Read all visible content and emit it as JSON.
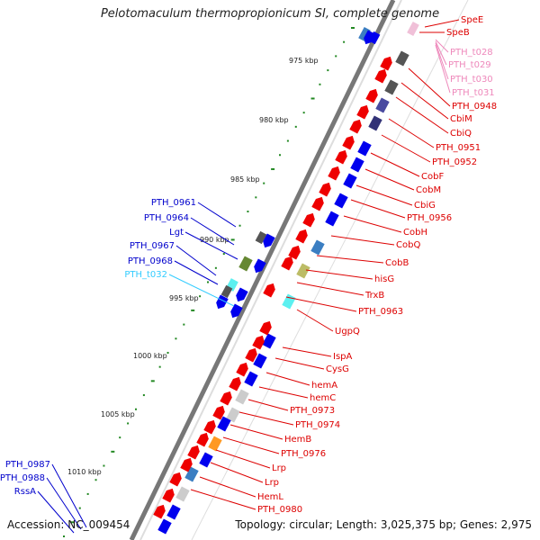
{
  "title": "Pelotomaculum thermopropionicum SI, complete genome",
  "footer": {
    "accession": "Accession: NC_009454",
    "topology": "Topology: circular; Length: 3,025,375 bp; Genes: 2,975"
  },
  "ruler": [
    "975 kbp",
    "980 kbp",
    "985 kbp",
    "990 kbp",
    "995 kbp",
    "1000 kbp",
    "1005 kbp",
    "1010 kbp"
  ],
  "colors": {
    "rna_label": "#ee88bb",
    "gene_label_right": "#dd0000",
    "gene_label_left": "#0000cc",
    "trna_label_left": "#33ccff",
    "forward_gene": "#ee0000",
    "reverse_gene": "#0000ee",
    "tick_green": "#228822"
  },
  "labels_right": [
    {
      "text": "SpeE",
      "color": "#dd0000"
    },
    {
      "text": "SpeB",
      "color": "#dd0000"
    },
    {
      "text": "PTH_t028",
      "color": "#ee88bb"
    },
    {
      "text": "PTH_t029",
      "color": "#ee88bb"
    },
    {
      "text": "PTH_t030",
      "color": "#ee88bb"
    },
    {
      "text": "PTH_t031",
      "color": "#ee88bb"
    },
    {
      "text": "PTH_0948",
      "color": "#dd0000"
    },
    {
      "text": "CbiM",
      "color": "#dd0000"
    },
    {
      "text": "CbiQ",
      "color": "#dd0000"
    },
    {
      "text": "PTH_0951",
      "color": "#dd0000"
    },
    {
      "text": "PTH_0952",
      "color": "#dd0000"
    },
    {
      "text": "CobF",
      "color": "#dd0000"
    },
    {
      "text": "CobM",
      "color": "#dd0000"
    },
    {
      "text": "CbiG",
      "color": "#dd0000"
    },
    {
      "text": "PTH_0956",
      "color": "#dd0000"
    },
    {
      "text": "CobH",
      "color": "#dd0000"
    },
    {
      "text": "CobQ",
      "color": "#dd0000"
    },
    {
      "text": "CobB",
      "color": "#dd0000"
    },
    {
      "text": "hisG",
      "color": "#dd0000"
    },
    {
      "text": "TrxB",
      "color": "#dd0000"
    },
    {
      "text": "PTH_0963",
      "color": "#dd0000"
    },
    {
      "text": "UgpQ",
      "color": "#dd0000"
    },
    {
      "text": "IspA",
      "color": "#dd0000"
    },
    {
      "text": "CysG",
      "color": "#dd0000"
    },
    {
      "text": "hemA",
      "color": "#dd0000"
    },
    {
      "text": "hemC",
      "color": "#dd0000"
    },
    {
      "text": "PTH_0973",
      "color": "#dd0000"
    },
    {
      "text": "PTH_0974",
      "color": "#dd0000"
    },
    {
      "text": "HemB",
      "color": "#dd0000"
    },
    {
      "text": "PTH_0976",
      "color": "#dd0000"
    },
    {
      "text": "Lrp",
      "color": "#dd0000"
    },
    {
      "text": "Lrp",
      "color": "#dd0000"
    },
    {
      "text": "HemL",
      "color": "#dd0000"
    },
    {
      "text": "PTH_0980",
      "color": "#dd0000"
    }
  ],
  "labels_left": [
    {
      "text": "PTH_0961",
      "color": "#0000cc"
    },
    {
      "text": "PTH_0964",
      "color": "#0000cc"
    },
    {
      "text": "Lgt",
      "color": "#0000cc"
    },
    {
      "text": "PTH_0967",
      "color": "#0000cc"
    },
    {
      "text": "PTH_0968",
      "color": "#0000cc"
    },
    {
      "text": "PTH_t032",
      "color": "#33ccff"
    },
    {
      "text": "PTH_0987",
      "color": "#0000cc"
    },
    {
      "text": "PTH_0988",
      "color": "#0000cc"
    },
    {
      "text": "RssA",
      "color": "#0000cc"
    }
  ]
}
